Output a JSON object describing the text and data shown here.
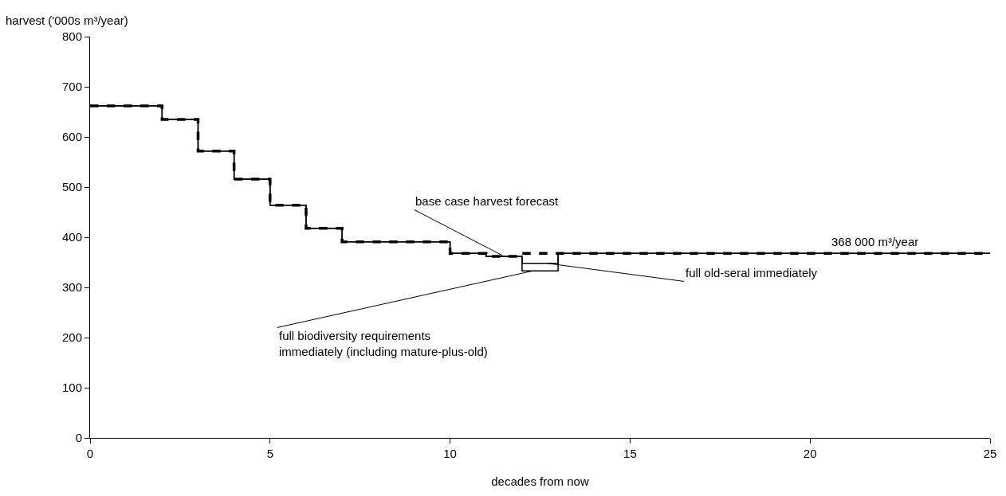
{
  "chart_data": {
    "type": "step",
    "xlabel": "decades from now",
    "ylabel": "harvest ('000s m³/year)",
    "xlim": [
      0,
      25
    ],
    "xticks": [
      0,
      5,
      10,
      15,
      20,
      25
    ],
    "ylim": [
      0,
      800
    ],
    "yticks": [
      0,
      100,
      200,
      300,
      400,
      500,
      600,
      700,
      800
    ],
    "legend": false,
    "series": [
      {
        "name": "full biodiversity requirements\nimmediately (including mature-plus-old)",
        "color": "#000000",
        "line_style": "solid",
        "x": [
          0,
          2,
          3,
          4,
          5,
          6,
          7,
          10,
          11,
          12,
          13,
          25
        ],
        "values": [
          662,
          635,
          572,
          516,
          464,
          418,
          391,
          368,
          362,
          333,
          368,
          368
        ]
      },
      {
        "name": "full old-seral immediately",
        "color": "#000000",
        "line_style": "solid",
        "x": [
          0,
          2,
          3,
          4,
          5,
          6,
          7,
          10,
          11,
          12,
          13,
          25
        ],
        "values": [
          662,
          635,
          572,
          516,
          464,
          418,
          391,
          368,
          362,
          348,
          368,
          368
        ]
      },
      {
        "name": "base case harvest forecast",
        "color": "#000000",
        "line_style": "dashed",
        "x": [
          0,
          2,
          3,
          4,
          5,
          6,
          7,
          10,
          11,
          12,
          13,
          25
        ],
        "values": [
          662,
          635,
          572,
          516,
          464,
          418,
          391,
          368,
          362,
          368,
          368,
          368
        ]
      }
    ],
    "annotations": [
      {
        "text": "368 000 m³/year",
        "x": 21.8,
        "y": 368
      }
    ]
  }
}
